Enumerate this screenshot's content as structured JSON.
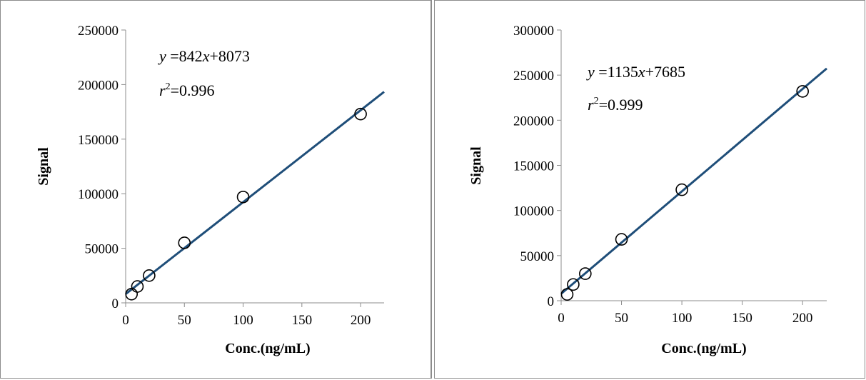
{
  "charts": [
    {
      "type": "scatter",
      "x": [
        5,
        10,
        20,
        50,
        100,
        200
      ],
      "y": [
        8000,
        15000,
        25000,
        55000,
        97000,
        173000
      ],
      "fit_line": {
        "x": [
          0,
          220
        ],
        "y": [
          8073,
          193313
        ]
      },
      "equation_var_y": "y",
      "equation_rhs_a": " =842",
      "equation_var_x": "x",
      "equation_rhs_b": "+8073",
      "r2_var": "r",
      "r2_sup": "2",
      "r2_rhs": "=0.996",
      "xlabel": "Conc.(ng/mL)",
      "ylabel": "Signal",
      "xlim": [
        0,
        220
      ],
      "ylim": [
        0,
        250000
      ],
      "xticks": [
        0,
        50,
        100,
        150,
        200
      ],
      "yticks": [
        0,
        50000,
        100000,
        150000,
        200000,
        250000
      ],
      "grid": false,
      "line_color": "#1f4e79",
      "marker_color": "#000000"
    },
    {
      "type": "scatter",
      "x": [
        5,
        10,
        20,
        50,
        100,
        200
      ],
      "y": [
        7000,
        18000,
        30000,
        68000,
        123000,
        232000
      ],
      "fit_line": {
        "x": [
          0,
          220
        ],
        "y": [
          7685,
          257385
        ]
      },
      "equation_var_y": "y",
      "equation_rhs_a": " =1135",
      "equation_var_x": "x",
      "equation_rhs_b": "+7685",
      "r2_var": "r",
      "r2_sup": "2",
      "r2_rhs": "=0.999",
      "xlabel": "Conc.(ng/mL)",
      "ylabel": "Signal",
      "xlim": [
        0,
        220
      ],
      "ylim": [
        0,
        300000
      ],
      "xticks": [
        0,
        50,
        100,
        150,
        200
      ],
      "yticks": [
        0,
        50000,
        100000,
        150000,
        200000,
        250000,
        300000
      ],
      "grid": false,
      "line_color": "#1f4e79",
      "marker_color": "#000000"
    }
  ]
}
